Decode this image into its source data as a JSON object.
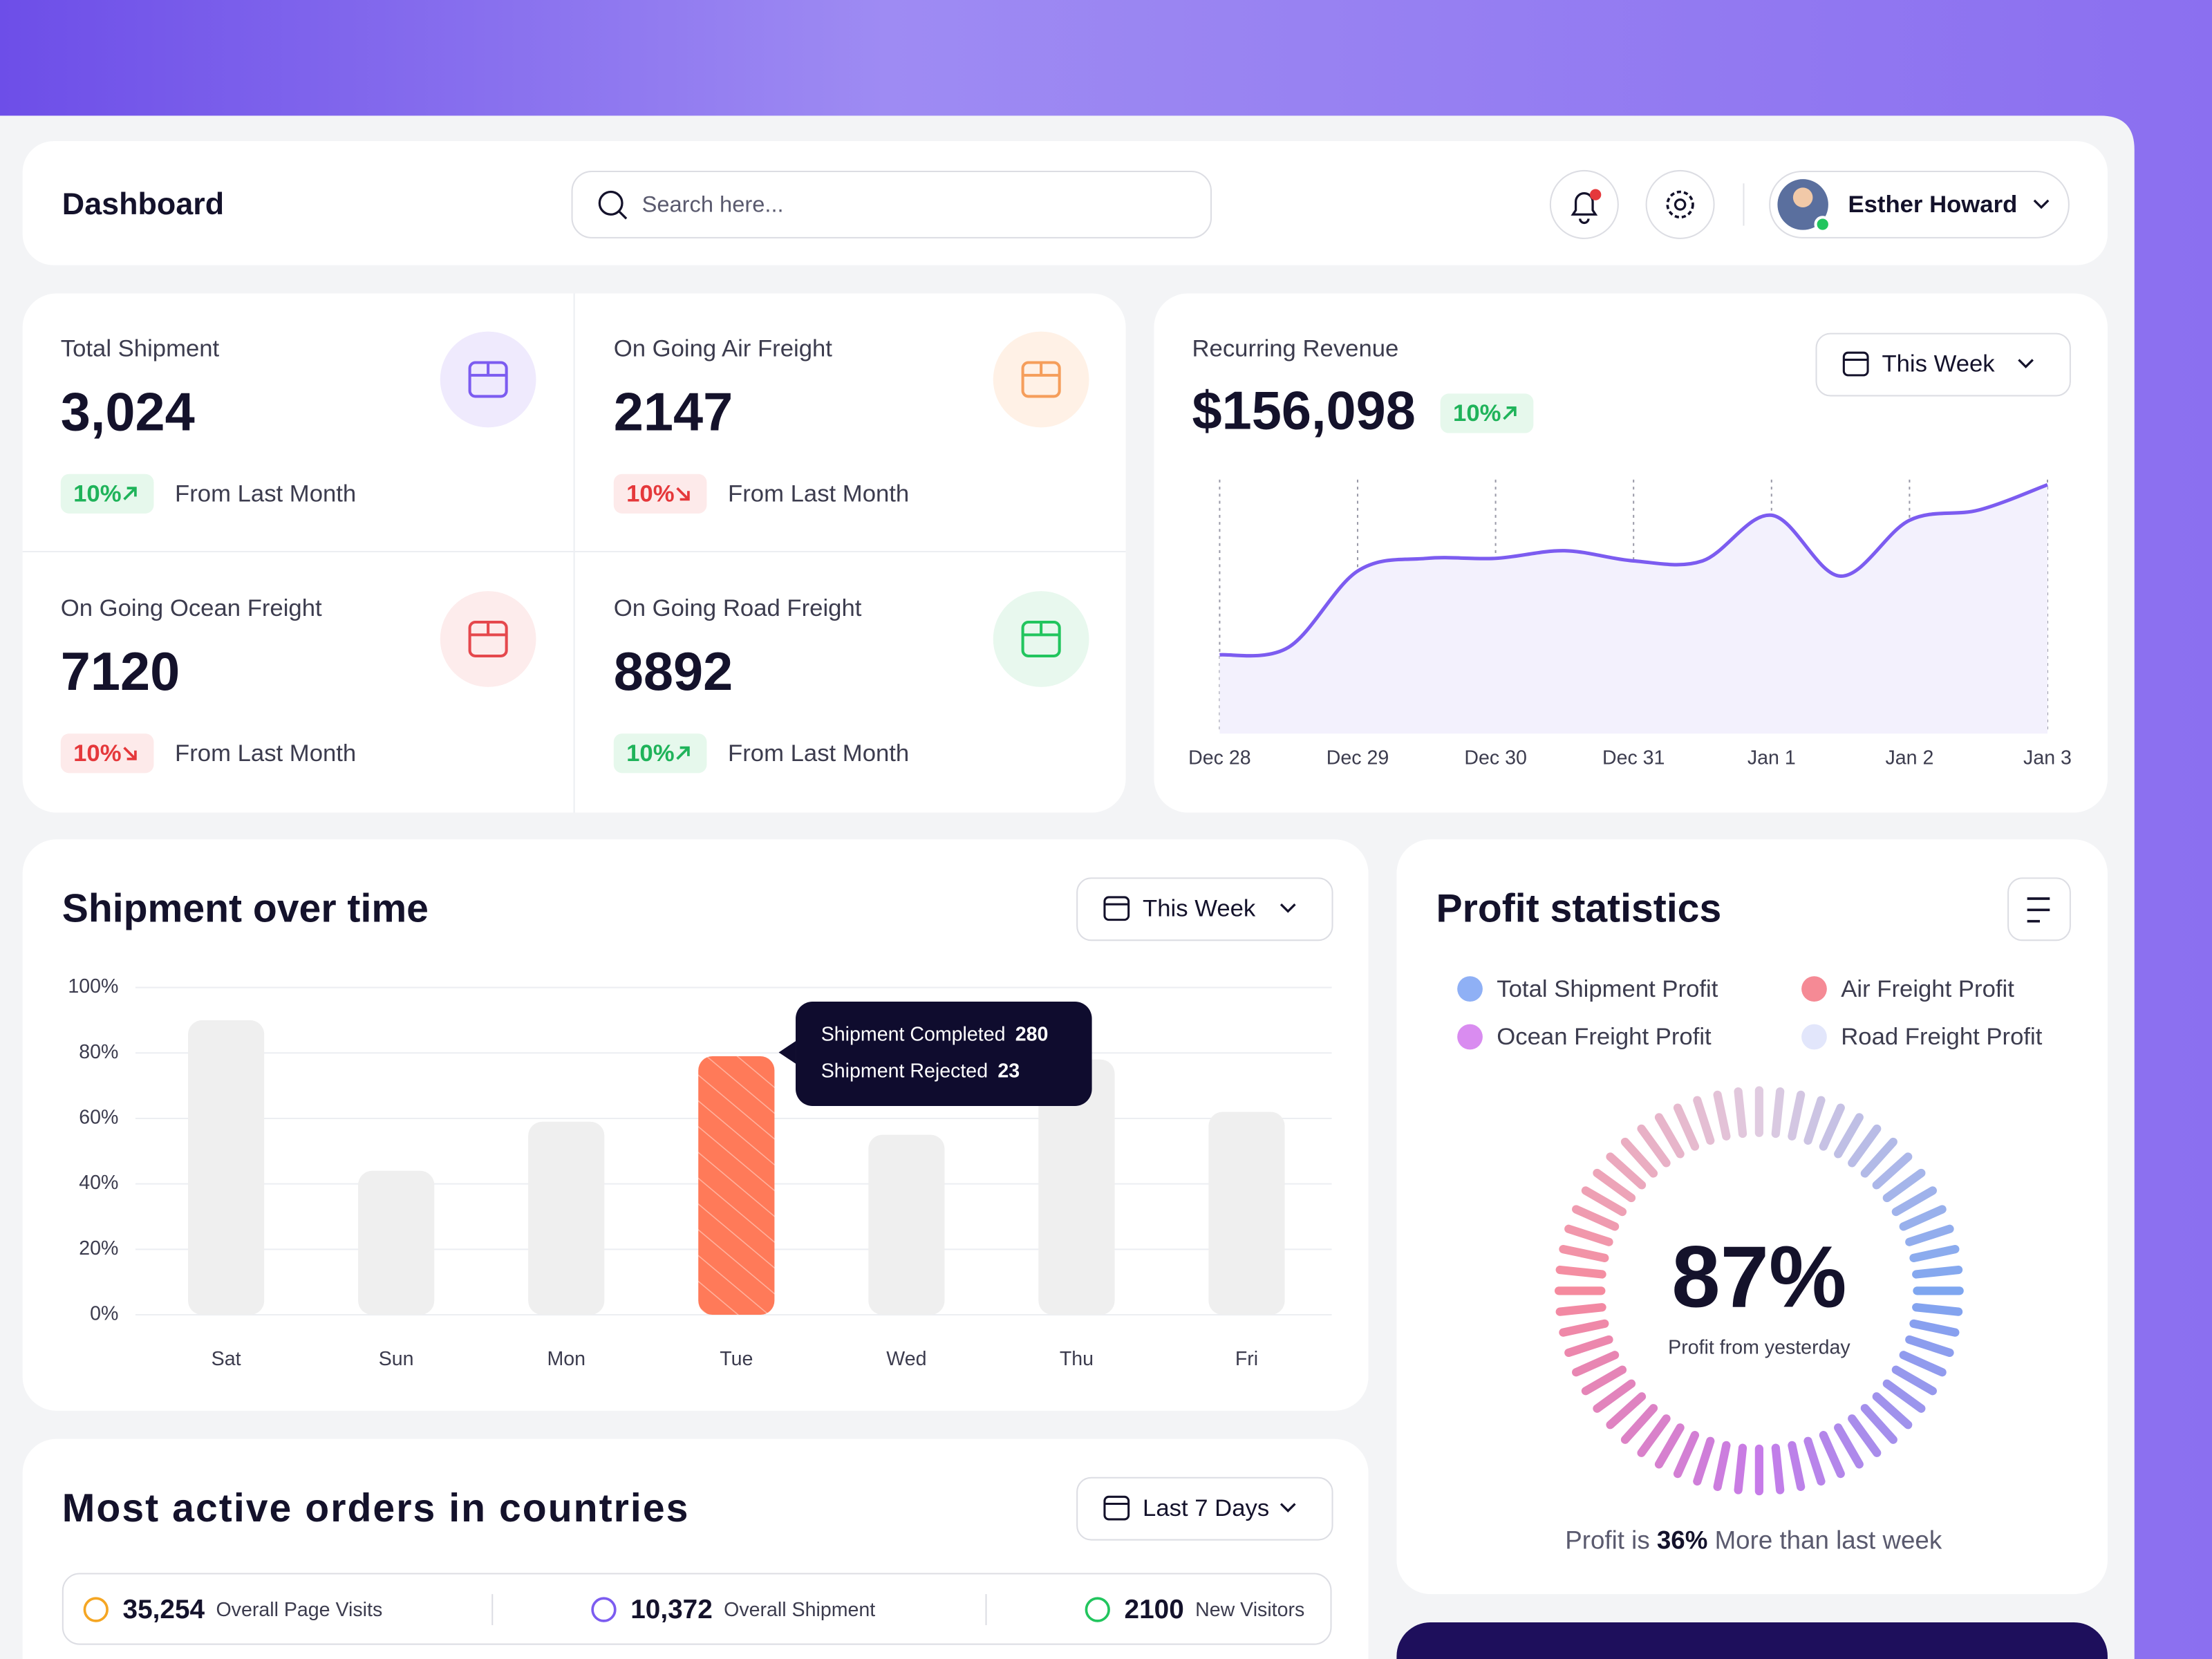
{
  "header": {
    "title": "Dashboard",
    "search_placeholder": "Search here...",
    "user_name": "Esther Howard"
  },
  "stats": [
    {
      "label": "Total Shipment",
      "value": "3,024",
      "change": "10%",
      "trend": "up",
      "note": "From Last Month",
      "icon_color": "#7c5cf0",
      "icon_bg": "#efeafd"
    },
    {
      "label": "On Going Air Freight",
      "value": "2147",
      "change": "10%",
      "trend": "down",
      "note": "From Last Month",
      "icon_color": "#f59e5b",
      "icon_bg": "#fff1e6"
    },
    {
      "label": "On Going Ocean Freight",
      "value": "7120",
      "change": "10%",
      "trend": "down",
      "note": "From Last Month",
      "icon_color": "#e5484d",
      "icon_bg": "#fdecec"
    },
    {
      "label": "On Going Road Freight",
      "value": "8892",
      "change": "10%",
      "trend": "up",
      "note": "From Last Month",
      "icon_color": "#22c55e",
      "icon_bg": "#e8f8ee"
    }
  ],
  "revenue": {
    "title": "Recurring Revenue",
    "value": "$156,098",
    "change": "10%",
    "trend": "up",
    "period": "This Week",
    "chart": {
      "type": "line",
      "color": "#7c5cf0",
      "area_color": "#f3f1fd",
      "x": [
        0,
        0.5,
        1,
        1.5,
        2,
        2.5,
        3,
        3.5,
        4,
        4.5,
        5,
        5.5,
        6
      ],
      "values": [
        31,
        34,
        64,
        69,
        69,
        72,
        68,
        68,
        86,
        62,
        84,
        88,
        98
      ],
      "xlim": [
        -0.2,
        6.17
      ],
      "ylim": [
        0,
        100
      ],
      "xticks": [
        {
          "value": 0,
          "label": "Dec 28"
        },
        {
          "value": 1,
          "label": "Dec 29"
        },
        {
          "value": 2,
          "label": "Dec 30"
        },
        {
          "value": 3,
          "label": "Dec 31"
        },
        {
          "value": 4,
          "label": "Jan 1"
        },
        {
          "value": 5,
          "label": "Jan 2"
        },
        {
          "value": 6,
          "label": "Jan 3"
        }
      ],
      "grid": true
    }
  },
  "shipments": {
    "title": "Shipment over time",
    "period": "This Week",
    "chart": {
      "type": "bar",
      "categories": [
        "Sat",
        "Sun",
        "Mon",
        "Tue",
        "Wed",
        "Thu",
        "Fri"
      ],
      "values": [
        90,
        44,
        59,
        79,
        55,
        78,
        62
      ],
      "color": "#efefef",
      "highlight_index": 3,
      "highlight_color": "#ff7a59",
      "ylim": [
        0,
        100
      ],
      "yticks": [
        {
          "value": 0,
          "label": "0%"
        },
        {
          "value": 20,
          "label": "20%"
        },
        {
          "value": 40,
          "label": "40%"
        },
        {
          "value": 60,
          "label": "60%"
        },
        {
          "value": 80,
          "label": "80%"
        },
        {
          "value": 100,
          "label": "100%"
        }
      ],
      "grid": true
    },
    "tooltip": {
      "rows": [
        {
          "label": "Shipment Completed",
          "value": "280"
        },
        {
          "label": "Shipment Rejected",
          "value": "23"
        }
      ]
    }
  },
  "profit": {
    "title": "Profit statistics",
    "legend": [
      {
        "name": "Total Shipment Profit",
        "color": "#8fb0f5"
      },
      {
        "name": "Air Freight Profit",
        "color": "#f58a95"
      },
      {
        "name": "Ocean Freight Profit",
        "color": "#d98cf0"
      },
      {
        "name": "Road Freight Profit",
        "color": "#e2e6fb"
      }
    ],
    "gauge": {
      "value_label": "87%",
      "caption": "Profit from yesterday"
    },
    "footer": {
      "before": "Profit is",
      "highlight": "36%",
      "after": "More than last week"
    }
  },
  "orders": {
    "title": "Most active orders in countries",
    "period": "Last 7 Days",
    "summary": [
      {
        "value": "35,254",
        "label": "Overall Page Visits"
      },
      {
        "value": "10,372",
        "label": "Overall Shipment"
      },
      {
        "value": "2100",
        "label": "New Visitors"
      }
    ]
  }
}
